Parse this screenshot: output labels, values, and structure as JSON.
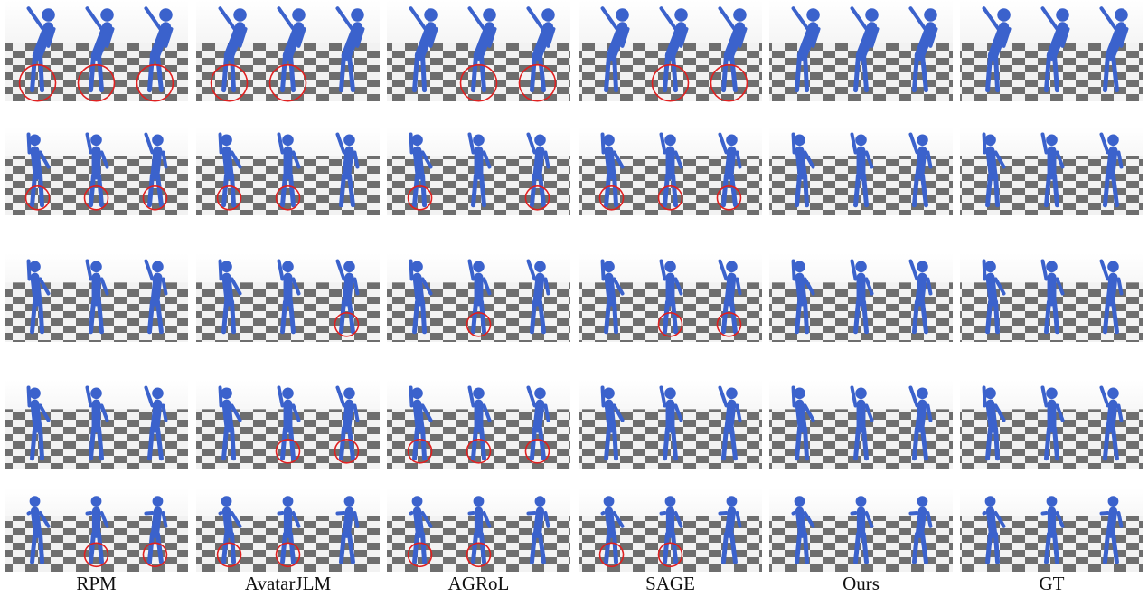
{
  "columns": [
    "RPM",
    "AvatarJLM",
    "AGRoL",
    "SAGE",
    "Ours",
    "GT"
  ]
}
